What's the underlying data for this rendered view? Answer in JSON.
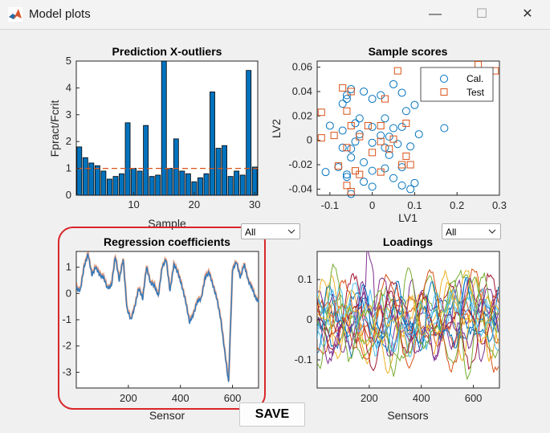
{
  "window": {
    "title": "Model plots",
    "minimize_glyph": "—",
    "maximize_glyph": "☐",
    "close_glyph": "✕"
  },
  "panel_outliers": {
    "title": "Prediction X-outliers",
    "xlabel": "Sample",
    "ylabel": "Fpract/Fcrit",
    "xticks": [
      "10",
      "20",
      "30"
    ],
    "yticks": [
      "0",
      "1",
      "2",
      "3",
      "4",
      "5"
    ],
    "bar_color": "#0072bd",
    "threshold_color": "#d95319",
    "threshold": 1,
    "chart_data": {
      "type": "bar",
      "title": "Prediction X-outliers",
      "xlabel": "Sample",
      "ylabel": "Fpract/Fcrit",
      "x": [
        1,
        2,
        3,
        4,
        5,
        6,
        7,
        8,
        9,
        10,
        11,
        12,
        13,
        14,
        15,
        16,
        17,
        18,
        19,
        20,
        21,
        22,
        23,
        24,
        25,
        26,
        27,
        28,
        29,
        30
      ],
      "values": [
        1.8,
        1.4,
        1.2,
        1.1,
        0.9,
        0.6,
        0.7,
        0.8,
        2.7,
        1.0,
        0.9,
        2.6,
        0.7,
        0.75,
        5.0,
        1.0,
        2.1,
        0.9,
        0.8,
        0.5,
        0.65,
        0.8,
        3.85,
        1.75,
        1.85,
        0.7,
        0.9,
        0.75,
        4.65,
        1.05
      ],
      "xlim": [
        0.5,
        30.5
      ],
      "ylim": [
        0,
        5
      ]
    }
  },
  "panel_scores": {
    "title": "Sample scores",
    "xlabel": "LV1",
    "ylabel": "LV2",
    "xticks": [
      "-0.1",
      "0",
      "0.1",
      "0.2",
      "0.3"
    ],
    "yticks": [
      "-0.04",
      "-0.02",
      "0",
      "0.02",
      "0.04",
      "0.06"
    ],
    "cal_color": "#0072bd",
    "test_color": "#d95319",
    "chart_data": {
      "type": "scatter",
      "title": "Sample scores",
      "xlabel": "LV1",
      "ylabel": "LV2",
      "xlim": [
        -0.13,
        0.3
      ],
      "ylim": [
        -0.045,
        0.065
      ],
      "legend": "top-right",
      "series": [
        {
          "name": "Cal.",
          "marker": "circle",
          "points": [
            [
              -0.05,
              0.042
            ],
            [
              -0.06,
              0.037
            ],
            [
              -0.06,
              0.034
            ],
            [
              -0.02,
              0.04
            ],
            [
              0.0,
              0.034
            ],
            [
              -0.07,
              0.03
            ],
            [
              0.02,
              0.037
            ],
            [
              0.05,
              0.046
            ],
            [
              0.07,
              0.039
            ],
            [
              0.1,
              0.029
            ],
            [
              0.08,
              0.024
            ],
            [
              -0.03,
              0.018
            ],
            [
              0.03,
              0.018
            ],
            [
              -0.1,
              0.012
            ],
            [
              -0.04,
              0.014
            ],
            [
              0.0,
              0.011
            ],
            [
              0.05,
              0.01
            ],
            [
              0.07,
              0.011
            ],
            [
              -0.07,
              0.008
            ],
            [
              -0.03,
              0.005
            ],
            [
              0.02,
              0.004
            ],
            [
              0.04,
              0.003
            ],
            [
              0.11,
              0.005
            ],
            [
              0.17,
              0.01
            ],
            [
              -0.04,
              -0.001
            ],
            [
              0.0,
              -0.002
            ],
            [
              0.06,
              -0.003
            ],
            [
              -0.07,
              -0.006
            ],
            [
              -0.05,
              -0.007
            ],
            [
              0.03,
              -0.006
            ],
            [
              0.09,
              -0.005
            ],
            [
              -0.05,
              -0.014
            ],
            [
              -0.02,
              -0.018
            ],
            [
              0.04,
              -0.012
            ],
            [
              -0.08,
              -0.022
            ],
            [
              0.0,
              -0.025
            ],
            [
              0.03,
              -0.023
            ],
            [
              -0.11,
              -0.026
            ],
            [
              -0.06,
              -0.028
            ],
            [
              -0.06,
              -0.03
            ],
            [
              0.07,
              -0.022
            ],
            [
              -0.02,
              -0.034
            ],
            [
              0.0,
              -0.038
            ],
            [
              0.05,
              -0.031
            ],
            [
              0.07,
              -0.037
            ],
            [
              -0.05,
              -0.044
            ],
            [
              0.1,
              -0.035
            ],
            [
              0.09,
              -0.04
            ]
          ]
        },
        {
          "name": "Test",
          "marker": "square",
          "points": [
            [
              0.25,
              0.062
            ],
            [
              0.29,
              0.057
            ],
            [
              0.06,
              0.057
            ],
            [
              -0.07,
              0.043
            ],
            [
              -0.05,
              0.04
            ],
            [
              0.03,
              0.034
            ],
            [
              -0.12,
              0.023
            ],
            [
              -0.06,
              0.024
            ],
            [
              -0.01,
              0.012
            ],
            [
              0.08,
              0.014
            ],
            [
              -0.05,
              0.012
            ],
            [
              0.02,
              0.012
            ],
            [
              -0.12,
              0.002
            ],
            [
              -0.09,
              0.004
            ],
            [
              -0.03,
              0.003
            ],
            [
              0.02,
              -0.001
            ],
            [
              0.05,
              0.001
            ],
            [
              -0.06,
              -0.006
            ],
            [
              0.0,
              -0.01
            ],
            [
              0.04,
              -0.007
            ],
            [
              0.08,
              -0.013
            ],
            [
              0.07,
              -0.02
            ],
            [
              0.09,
              -0.02
            ],
            [
              -0.08,
              -0.021
            ],
            [
              -0.04,
              -0.025
            ],
            [
              -0.03,
              -0.028
            ],
            [
              0.02,
              -0.026
            ],
            [
              -0.06,
              -0.037
            ],
            [
              -0.05,
              -0.042
            ]
          ]
        }
      ]
    }
  },
  "panel_regression": {
    "title": "Regression coefficients",
    "xlabel": "Sensor",
    "xticks": [
      "200",
      "400",
      "600"
    ],
    "yticks": [
      "1",
      "0",
      "-1",
      "-2",
      "-3"
    ],
    "line_color": "#2f7bbf",
    "chart_data": {
      "type": "line",
      "title": "Regression coefficients",
      "xlabel": "Sensor",
      "xlim": [
        0,
        700
      ],
      "ylim": [
        -3.6,
        1.6
      ],
      "x": [
        0,
        15,
        30,
        45,
        60,
        75,
        90,
        105,
        120,
        135,
        150,
        165,
        180,
        195,
        210,
        225,
        240,
        255,
        270,
        285,
        300,
        315,
        330,
        345,
        360,
        375,
        390,
        405,
        420,
        435,
        450,
        465,
        480,
        495,
        510,
        525,
        540,
        555,
        570,
        585,
        600,
        615,
        630,
        645,
        660,
        675,
        690,
        700
      ],
      "values": [
        0.2,
        0.1,
        1.0,
        1.5,
        0.7,
        1.0,
        0.7,
        0.6,
        0.2,
        0.3,
        1.4,
        0.5,
        1.3,
        -0.6,
        -1.0,
        -0.5,
        0.2,
        -0.2,
        1.0,
        0.4,
        0.3,
        -0.1,
        1.0,
        1.3,
        0.1,
        1.1,
        0.8,
        0.3,
        -0.3,
        -1.1,
        -0.8,
        -0.3,
        -0.2,
        0.6,
        0.8,
        0.3,
        -0.2,
        -1.0,
        -2.2,
        -3.4,
        0.9,
        1.2,
        0.6,
        1.1,
        0.5,
        0.2,
        -0.2,
        -0.3
      ]
    }
  },
  "panel_loadings": {
    "title": "Loadings",
    "xlabel": "Sensors",
    "xticks": [
      "200",
      "400",
      "600"
    ],
    "yticks": [
      "0.1",
      "0",
      "-0.1"
    ],
    "chart_data": {
      "type": "line",
      "title": "Loadings",
      "xlabel": "Sensors",
      "xlim": [
        0,
        700
      ],
      "ylim": [
        -0.17,
        0.17
      ],
      "series_count": 20,
      "series_colors": [
        "#0072bd",
        "#d95319",
        "#edb120",
        "#7e2f8e",
        "#77ac30",
        "#4dbeee",
        "#a2142f"
      ],
      "note": "approximately 20 overlapping loading curves spanning about -0.16 to 0.16"
    }
  },
  "controls": {
    "scores_dropdown": "All",
    "loadings_dropdown": "All",
    "save_label": "SAVE"
  },
  "highlight_color": "#d9262a"
}
